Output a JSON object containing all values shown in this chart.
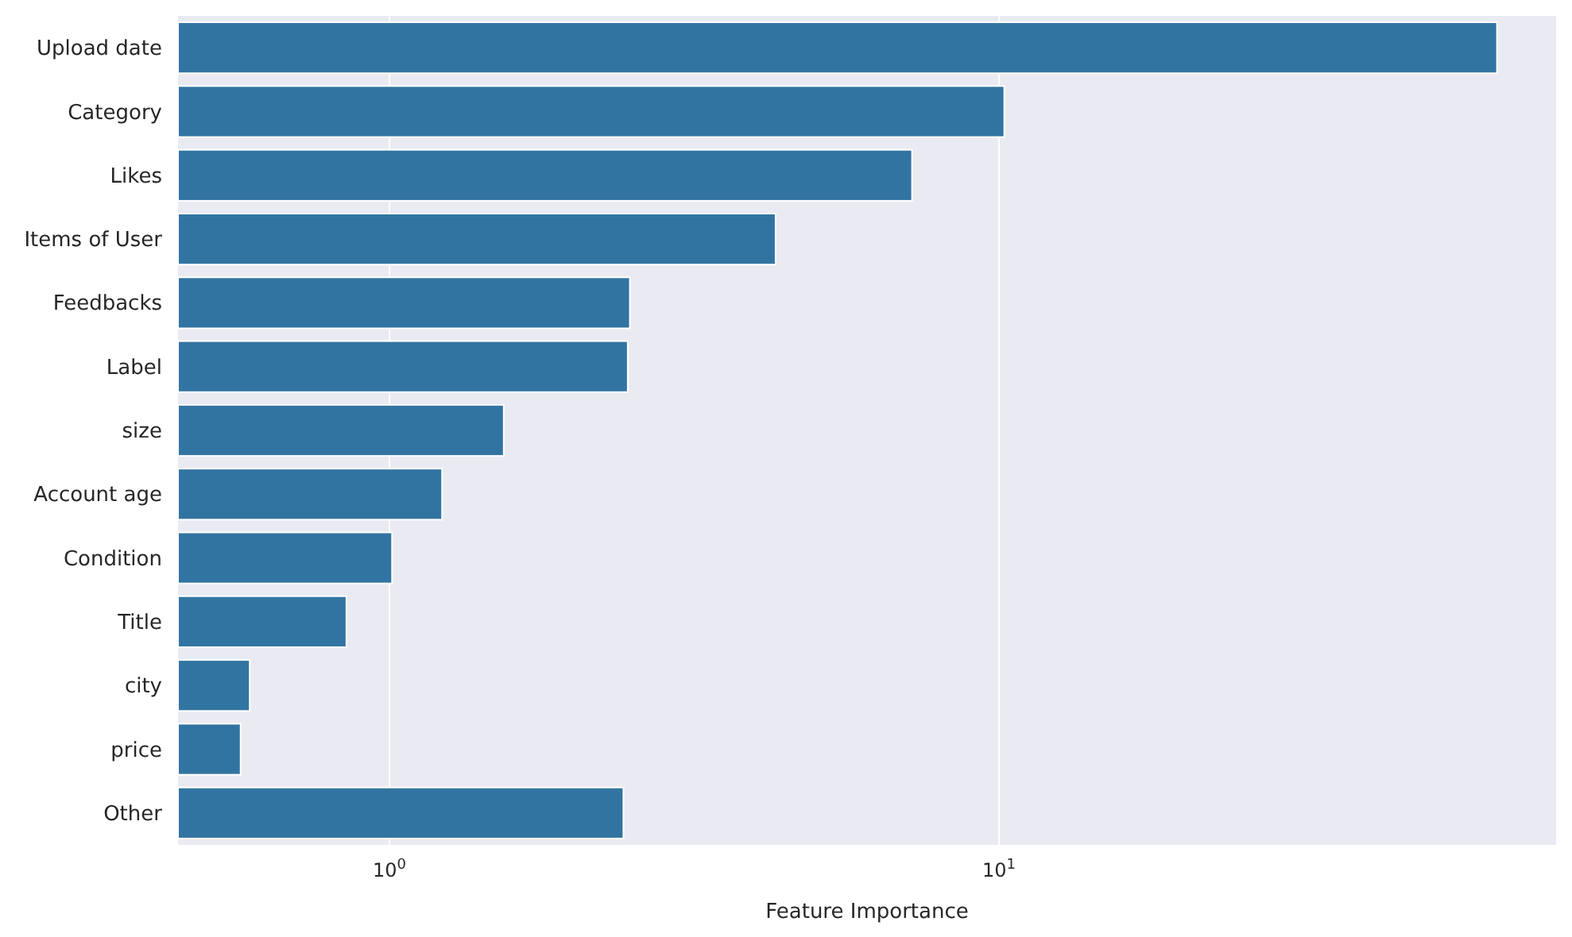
{
  "chart_data": {
    "type": "bar",
    "orientation": "horizontal",
    "log": "x",
    "xlabel": "Feature Importance",
    "categories": [
      "Upload date",
      "Category",
      "Likes",
      "Items of User",
      "Feedbacks",
      "Label",
      "size",
      "Account age",
      "Condition",
      "Title",
      "city",
      "price",
      "Other"
    ],
    "values": [
      65.6,
      10.2,
      7.2,
      4.3,
      2.48,
      2.46,
      1.54,
      1.22,
      1.01,
      0.85,
      0.59,
      0.57,
      2.42
    ],
    "color": "#3274a1",
    "xlim": [
      0.45,
      82
    ],
    "xticks": [
      {
        "value": 1,
        "label": "10$^{0}$"
      },
      {
        "value": 10,
        "label": "10$^{1}$"
      }
    ],
    "grid": "x"
  }
}
